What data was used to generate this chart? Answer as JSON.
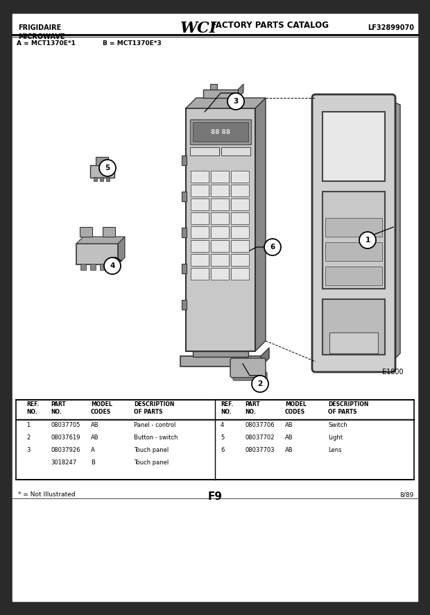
{
  "title_left": "FRIGIDAIRE\nMICROWAVE",
  "title_right": "LF32899070",
  "model_line_a": "A = MCT1370E*1",
  "model_line_b": "B = MCT1370E*3",
  "diagram_label": "E1800",
  "page_label": "F9",
  "page_date": "8/89",
  "footnote": "* = Not Illustrated",
  "bg_color": "#f5f5f0",
  "content_bg": "#ffffff",
  "border_dark": "#1a1a1a",
  "parts_table": {
    "left_rows": [
      [
        "1",
        "08037705",
        "AB",
        "Panel - control"
      ],
      [
        "2",
        "08037619",
        "AB",
        "Button - switch"
      ],
      [
        "3",
        "08037926",
        "A",
        "Touch panel"
      ],
      [
        "",
        "3018247",
        "B",
        "Touch panel"
      ]
    ],
    "right_rows": [
      [
        "4",
        "08037706",
        "AB",
        "Switch"
      ],
      [
        "5",
        "08037702",
        "AB",
        "Light"
      ],
      [
        "6",
        "08037703",
        "AB",
        "Lens"
      ]
    ]
  }
}
